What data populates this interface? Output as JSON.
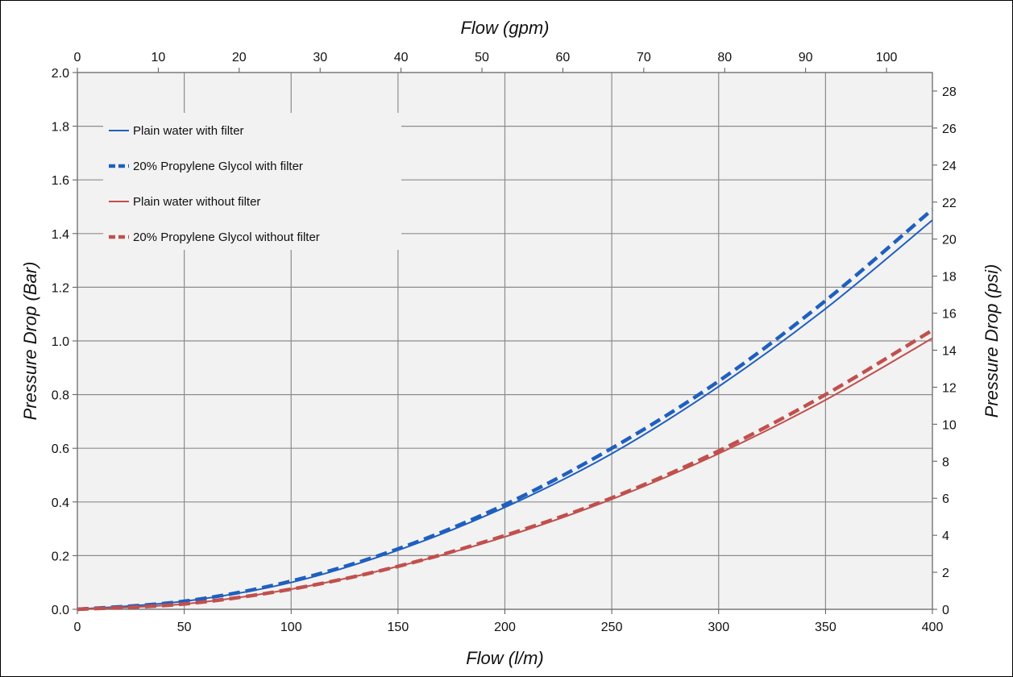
{
  "chart_data": {
    "type": "line",
    "bottom_axis": {
      "label": "Flow (l/m)",
      "range": [
        0,
        400
      ],
      "ticks": [
        0,
        50,
        100,
        150,
        200,
        250,
        300,
        350,
        400
      ]
    },
    "top_axis": {
      "label": "Flow (gpm)",
      "range": [
        0,
        105.67
      ],
      "ticks": [
        0,
        10,
        20,
        30,
        40,
        50,
        60,
        70,
        80,
        90,
        100
      ]
    },
    "left_axis": {
      "label": "Pressure Drop (Bar)",
      "range": [
        0,
        2.0
      ],
      "ticks": [
        "0.0",
        "0.2",
        "0.4",
        "0.6",
        "0.8",
        "1.0",
        "1.2",
        "1.4",
        "1.6",
        "1.8",
        "2.0"
      ]
    },
    "right_axis": {
      "label": "Pressure Drop (psi)",
      "range": [
        0,
        29.0
      ],
      "ticks": [
        0,
        2,
        4,
        6,
        8,
        10,
        12,
        14,
        16,
        18,
        20,
        22,
        24,
        26,
        28
      ]
    },
    "grid": true,
    "legend_position": "top-left",
    "x": [
      0,
      50,
      100,
      150,
      200,
      250,
      300,
      350,
      400
    ],
    "series": [
      {
        "name": "Plain water with filter",
        "color": "#1f5fbf",
        "dash": false,
        "values": [
          0.0,
          0.03,
          0.1,
          0.22,
          0.38,
          0.58,
          0.83,
          1.12,
          1.45
        ]
      },
      {
        "name": "20% Propylene Glycol with filter",
        "color": "#1f5fbf",
        "dash": true,
        "values": [
          0.0,
          0.03,
          0.105,
          0.225,
          0.39,
          0.6,
          0.85,
          1.15,
          1.49
        ]
      },
      {
        "name": "Plain water without filter",
        "color": "#c0504d",
        "dash": false,
        "values": [
          0.0,
          0.02,
          0.075,
          0.16,
          0.27,
          0.41,
          0.58,
          0.78,
          1.01
        ]
      },
      {
        "name": "20% Propylene Glycol without filter",
        "color": "#c0504d",
        "dash": true,
        "values": [
          0.0,
          0.02,
          0.075,
          0.16,
          0.275,
          0.415,
          0.59,
          0.8,
          1.04
        ]
      }
    ]
  }
}
